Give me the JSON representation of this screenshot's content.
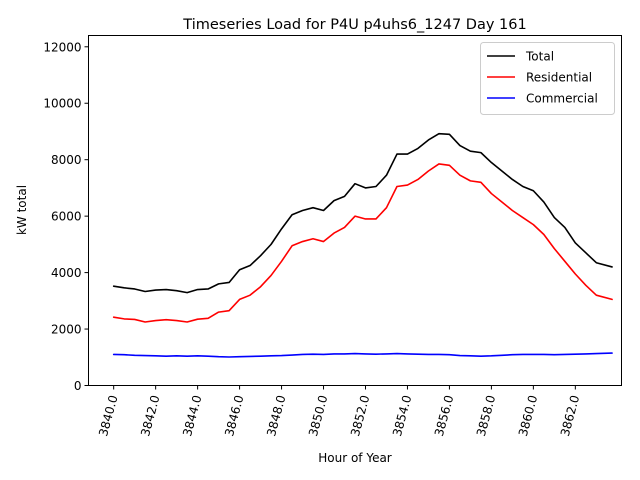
{
  "chart_data": {
    "type": "line",
    "title": "Timeseries Load for P4U p4uhs6_1247  Day 161",
    "xlabel": "Hour of Year",
    "ylabel": "kW total",
    "xlim": [
      3838.8,
      3864.2
    ],
    "ylim": [
      0,
      12400
    ],
    "x_ticks": [
      3840,
      3842,
      3844,
      3846,
      3848,
      3850,
      3852,
      3854,
      3856,
      3858,
      3860,
      3862
    ],
    "x_tick_labels": [
      "3840.0",
      "3842.0",
      "3844.0",
      "3846.0",
      "3848.0",
      "3850.0",
      "3852.0",
      "3854.0",
      "3856.0",
      "3858.0",
      "3860.0",
      "3862.0"
    ],
    "y_ticks": [
      0,
      2000,
      4000,
      6000,
      8000,
      10000,
      12000
    ],
    "y_tick_labels": [
      "0",
      "2000",
      "4000",
      "6000",
      "8000",
      "10000",
      "12000"
    ],
    "legend_position": "top-right",
    "x": [
      3840.0,
      3840.5,
      3841.0,
      3841.5,
      3842.0,
      3842.5,
      3843.0,
      3843.5,
      3844.0,
      3844.5,
      3845.0,
      3845.5,
      3846.0,
      3846.5,
      3847.0,
      3847.5,
      3848.0,
      3848.5,
      3849.0,
      3849.5,
      3850.0,
      3850.5,
      3851.0,
      3851.5,
      3852.0,
      3852.5,
      3853.0,
      3853.5,
      3854.0,
      3854.5,
      3855.0,
      3855.5,
      3856.0,
      3856.5,
      3857.0,
      3857.5,
      3858.0,
      3858.5,
      3859.0,
      3859.5,
      3860.0,
      3860.5,
      3861.0,
      3861.5,
      3862.0,
      3862.5,
      3863.0,
      3863.75
    ],
    "series": [
      {
        "name": "Total",
        "color": "#000000",
        "values": [
          3520,
          3460,
          3420,
          3330,
          3380,
          3400,
          3360,
          3290,
          3400,
          3420,
          3600,
          3650,
          4100,
          4250,
          4600,
          5000,
          5550,
          6050,
          6200,
          6300,
          6200,
          6550,
          6700,
          7150,
          7000,
          7050,
          7450,
          8200,
          8200,
          8400,
          8700,
          8920,
          8900,
          8500,
          8300,
          8250,
          7900,
          7600,
          7300,
          7050,
          6900,
          6500,
          5950,
          5600,
          5050,
          4700,
          4350,
          4200
        ]
      },
      {
        "name": "Residential",
        "color": "#ff0000",
        "values": [
          2420,
          2360,
          2340,
          2250,
          2300,
          2330,
          2300,
          2250,
          2350,
          2380,
          2600,
          2650,
          3050,
          3200,
          3500,
          3900,
          4400,
          4950,
          5100,
          5200,
          5100,
          5400,
          5600,
          6000,
          5900,
          5900,
          6300,
          7050,
          7100,
          7300,
          7600,
          7850,
          7800,
          7450,
          7250,
          7200,
          6800,
          6500,
          6200,
          5950,
          5700,
          5350,
          4850,
          4400,
          3950,
          3550,
          3200,
          3050
        ]
      },
      {
        "name": "Commercial",
        "color": "#0000ff",
        "values": [
          1100,
          1090,
          1070,
          1060,
          1050,
          1040,
          1050,
          1040,
          1050,
          1040,
          1020,
          1010,
          1020,
          1030,
          1040,
          1050,
          1060,
          1080,
          1100,
          1110,
          1100,
          1120,
          1120,
          1130,
          1120,
          1110,
          1120,
          1130,
          1120,
          1110,
          1100,
          1100,
          1090,
          1060,
          1050,
          1040,
          1050,
          1070,
          1090,
          1100,
          1100,
          1100,
          1090,
          1100,
          1110,
          1120,
          1130,
          1150
        ]
      }
    ]
  }
}
